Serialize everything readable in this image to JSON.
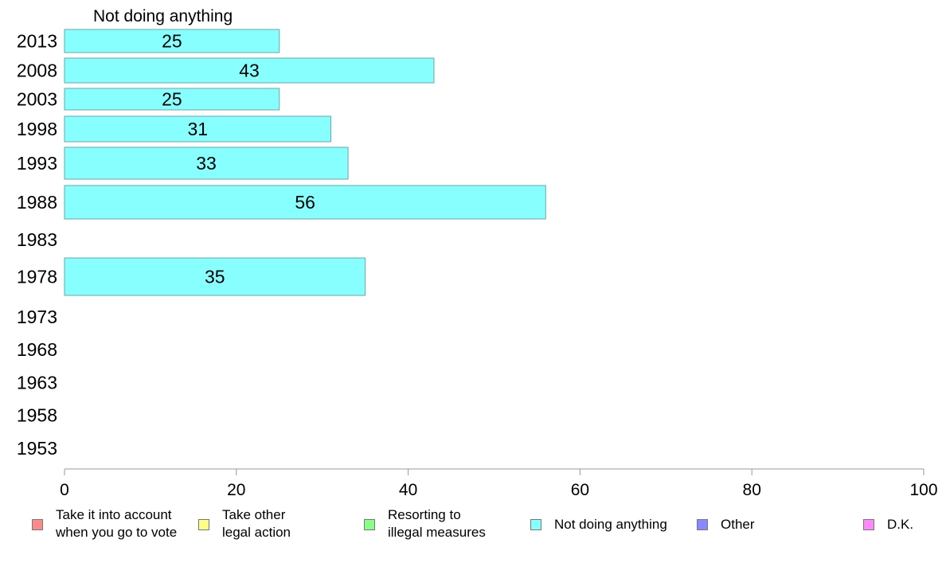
{
  "chart_data": {
    "type": "bar",
    "orientation": "horizontal",
    "title": "Not doing anything",
    "categories": [
      "2013",
      "2008",
      "2003",
      "1998",
      "1993",
      "1988",
      "1983",
      "1978",
      "1973",
      "1968",
      "1963",
      "1958",
      "1953"
    ],
    "series": [
      {
        "name": "Not doing anything",
        "color": "#88ffff",
        "values": [
          25,
          43,
          25,
          31,
          33,
          56,
          null,
          35,
          null,
          null,
          null,
          null,
          null
        ]
      }
    ],
    "xlim": [
      0,
      100
    ],
    "xticks": [
      "0",
      "20",
      "40",
      "60",
      "80",
      "100"
    ],
    "grid": false,
    "legend_position": "bottom"
  },
  "legend": [
    {
      "label": "Take it into account\nwhen you go to vote",
      "color": "#ff8888"
    },
    {
      "label": "Take other\nlegal action",
      "color": "#ffff88"
    },
    {
      "label": "Resorting to\nillegal measures",
      "color": "#88ff88"
    },
    {
      "label": "Not doing anything",
      "color": "#88ffff"
    },
    {
      "label": "Other",
      "color": "#8888ff"
    },
    {
      "label": "D.K.",
      "color": "#ff88ff"
    }
  ]
}
